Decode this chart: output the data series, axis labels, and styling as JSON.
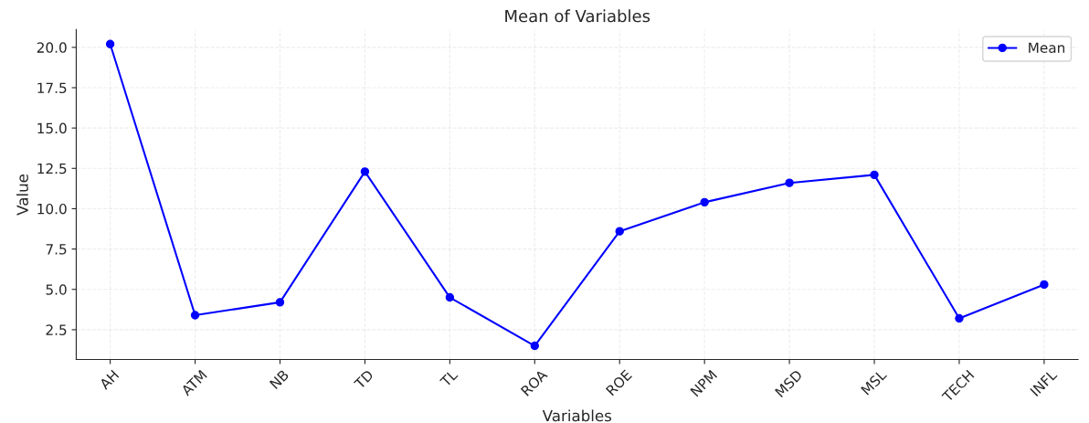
{
  "chart_data": {
    "type": "line",
    "title": "Mean of Variables",
    "xlabel": "Variables",
    "ylabel": "Value",
    "categories": [
      "AH",
      "ATM",
      "NB",
      "TD",
      "TL",
      "ROA",
      "ROE",
      "NPM",
      "MSD",
      "MSL",
      "TECH",
      "INFL"
    ],
    "series": [
      {
        "name": "Mean",
        "color": "#0000ff",
        "values": [
          20.2,
          3.4,
          4.2,
          12.3,
          4.5,
          1.5,
          8.6,
          10.4,
          11.6,
          12.1,
          3.2,
          5.3
        ]
      }
    ],
    "ylim": [
      0.65,
      21.1
    ],
    "yticks": [
      {
        "value": 2.5,
        "label": "2.5"
      },
      {
        "value": 5,
        "label": "5.0"
      },
      {
        "value": 7.5,
        "label": "7.5"
      },
      {
        "value": 10,
        "label": "10.0"
      },
      {
        "value": 12.5,
        "label": "12.5"
      },
      {
        "value": 15,
        "label": "15.0"
      },
      {
        "value": 17.5,
        "label": "17.5"
      },
      {
        "value": 20,
        "label": "20.0"
      }
    ],
    "grid": true,
    "legend": "top right",
    "marker": "circle",
    "line_style": "solid"
  }
}
